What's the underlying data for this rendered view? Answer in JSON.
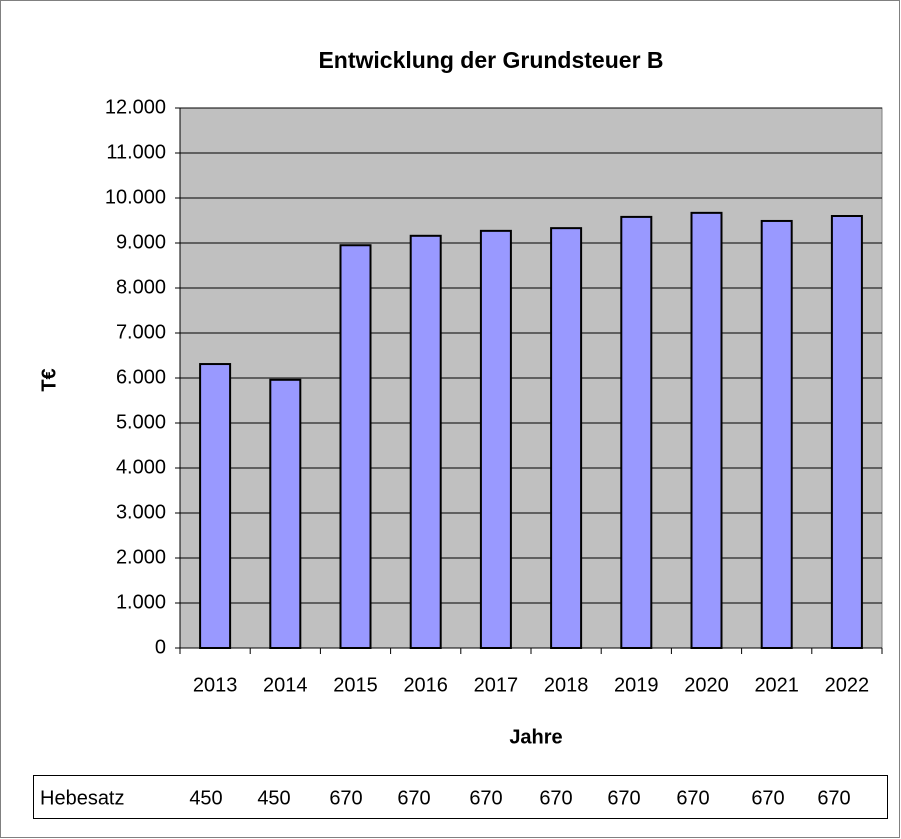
{
  "chart_data": {
    "type": "bar",
    "title": "Entwicklung der Grundsteuer B",
    "y_label": "T€",
    "x_label": "Jahre",
    "categories": [
      "2013",
      "2014",
      "2015",
      "2016",
      "2017",
      "2018",
      "2019",
      "2020",
      "2021",
      "2022"
    ],
    "values": [
      6310,
      5960,
      8950,
      9160,
      9270,
      9330,
      9580,
      9670,
      9490,
      9600
    ],
    "color": "#9999ff",
    "plot_background": "#c0c0c0",
    "grid": true,
    "ylim": [
      0,
      12000
    ],
    "yticks": [
      0,
      {
        "value": 1000,
        "label": "1.000"
      },
      {
        "value": 2000,
        "label": "2.000"
      },
      {
        "value": 3000,
        "label": "3.000"
      },
      {
        "value": 4000,
        "label": "4.000"
      },
      {
        "value": 5000,
        "label": "5.000"
      },
      {
        "value": 6000,
        "label": "6.000"
      },
      {
        "value": 7000,
        "label": "7.000"
      },
      {
        "value": 8000,
        "label": "8.000"
      },
      {
        "value": 9000,
        "label": "9.000"
      },
      {
        "value": 10000,
        "label": "10.000"
      },
      {
        "value": 11000,
        "label": "11.000"
      },
      {
        "value": 12000,
        "label": "12.000"
      }
    ],
    "table_label": "Hebesatz",
    "table_values": [
      450,
      450,
      670,
      670,
      670,
      670,
      670,
      670,
      670,
      670
    ]
  }
}
